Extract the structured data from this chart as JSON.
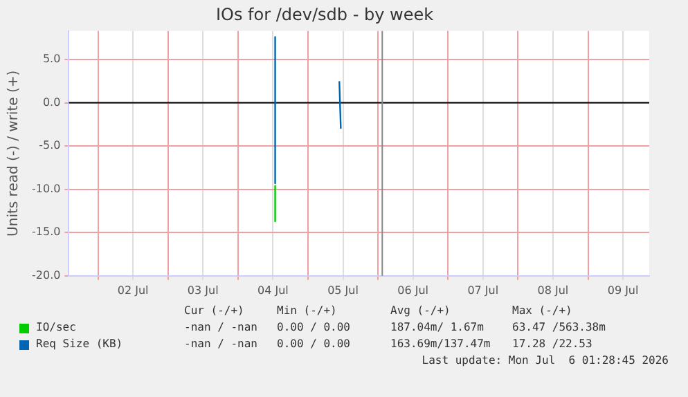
{
  "chart_data": {
    "type": "line",
    "title": "IOs for /dev/sdb - by week",
    "ylabel": "Units read (-) / write (+)",
    "xlim": [
      "2026-07-01T14:00",
      "2026-07-09T21:00"
    ],
    "xticks": [
      {
        "value": "2026-07-02T00:00",
        "label": null
      },
      {
        "value": "2026-07-02T12:00",
        "label": "02 Jul"
      },
      {
        "value": "2026-07-03T00:00",
        "label": null
      },
      {
        "value": "2026-07-03T12:00",
        "label": "03 Jul"
      },
      {
        "value": "2026-07-04T00:00",
        "label": null
      },
      {
        "value": "2026-07-04T12:00",
        "label": "04 Jul"
      },
      {
        "value": "2026-07-05T00:00",
        "label": null
      },
      {
        "value": "2026-07-05T12:00",
        "label": "05 Jul"
      },
      {
        "value": "2026-07-06T00:00",
        "label": null
      },
      {
        "value": "2026-07-06T12:00",
        "label": "06 Jul"
      },
      {
        "value": "2026-07-07T00:00",
        "label": null
      },
      {
        "value": "2026-07-07T12:00",
        "label": "07 Jul"
      },
      {
        "value": "2026-07-08T00:00",
        "label": null
      },
      {
        "value": "2026-07-08T12:00",
        "label": "08 Jul"
      },
      {
        "value": "2026-07-09T00:00",
        "label": null
      },
      {
        "value": "2026-07-09T12:00",
        "label": "09 Jul"
      }
    ],
    "ylim": [
      -20,
      8.3
    ],
    "yticks": [
      {
        "value": -20,
        "label": "-20.0"
      },
      {
        "value": -15,
        "label": "-15.0"
      },
      {
        "value": -10,
        "label": "-10.0"
      },
      {
        "value": -5,
        "label": "-5.0"
      },
      {
        "value": 0,
        "label": "0.0"
      },
      {
        "value": 5,
        "label": "5.0"
      }
    ],
    "grid": true,
    "legend": "bottom left",
    "marker": "none",
    "line_style": "solid",
    "series": [
      {
        "name": "IO/sec",
        "color": "#00cc00",
        "x": [
          "2026-07-04T12:45",
          "2026-07-04T12:45"
        ],
        "values": [
          -9.6,
          -13.7
        ]
      },
      {
        "name": "Req Size (KB)",
        "color": "#0066b3",
        "x": [
          "2026-07-04T12:45",
          "2026-07-04T12:45",
          "2026-07-05T00:00",
          "2026-07-05T10:45",
          "2026-07-05T11:15"
        ],
        "values": [
          7.6,
          -9.3,
          null,
          2.5,
          -3.0
        ]
      }
    ],
    "ref_lines": [
      {
        "axis": "y",
        "value": 0,
        "color": "#000000"
      },
      {
        "axis": "x",
        "value": "2026-07-06T01:28",
        "color": "#888888"
      }
    ],
    "annotations": [
      "Cur (-/+)",
      "Min (-/+)",
      "Avg (-/+)",
      "Max (-/+)",
      "-nan / -nan",
      "0.00 / 0.00",
      "187.04m/ 1.67m",
      "63.47 /563.38m",
      "-nan / -nan",
      "0.00 / 0.00",
      "163.69m/137.47m",
      "17.28 /22.53",
      "Last update: Mon Jul  6 01:28:45 2026"
    ]
  }
}
